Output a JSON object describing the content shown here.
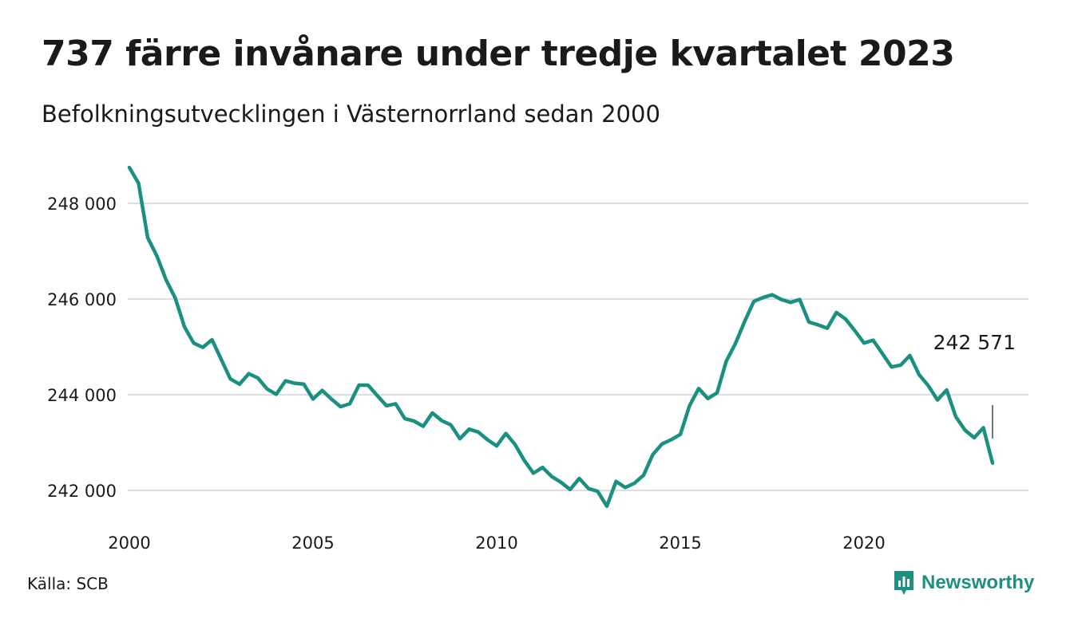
{
  "title": "737 färre invånare under tredje kvartalet 2023",
  "subtitle": "Befolkningsutvecklingen i Västernorrland sedan 2000",
  "source": "Källa: SCB",
  "brand": {
    "name": "Newsworthy",
    "icon": "newsworthy-logo-icon",
    "color": "#1f8f7f"
  },
  "chart_data": {
    "type": "line",
    "line_color": "#1a9080",
    "grid": true,
    "xlim": [
      2000,
      2023.5
    ],
    "ylim": [
      241500,
      249000
    ],
    "y_ticks": [
      242000,
      244000,
      246000,
      248000
    ],
    "y_tick_labels": [
      "242 000",
      "244 000",
      "246 000",
      "248 000"
    ],
    "x_ticks": [
      2000,
      2005,
      2010,
      2015,
      2020
    ],
    "x_tick_labels": [
      "2000",
      "2005",
      "2010",
      "2015",
      "2020"
    ],
    "last_value_label": "242 571",
    "series": [
      {
        "values": [
          248750,
          248420,
          247280,
          246900,
          246400,
          246020,
          245420,
          245080,
          244990,
          245150,
          244740,
          244330,
          244220,
          244440,
          244350,
          244120,
          244010,
          244290,
          244240,
          244220,
          243910,
          244090,
          243910,
          243750,
          243810,
          244200,
          244200,
          243980,
          243770,
          243810,
          243500,
          243450,
          243340,
          243620,
          243460,
          243370,
          243080,
          243280,
          243220,
          243060,
          242930,
          243190,
          242960,
          242630,
          242360,
          242480,
          242290,
          242170,
          242020,
          242250,
          242040,
          241980,
          241670,
          242190,
          242060,
          242150,
          242320,
          242750,
          242970,
          243060,
          243170,
          243770,
          244130,
          243920,
          244040,
          244700,
          245070,
          245530,
          245950,
          246030,
          246090,
          245990,
          245930,
          245990,
          245520,
          245460,
          245390,
          245720,
          245580,
          245340,
          245080,
          245140,
          244860,
          244580,
          244620,
          244820,
          244420,
          244190,
          243890,
          244100,
          243540,
          243260,
          243100,
          243310,
          242571
        ]
      }
    ]
  }
}
